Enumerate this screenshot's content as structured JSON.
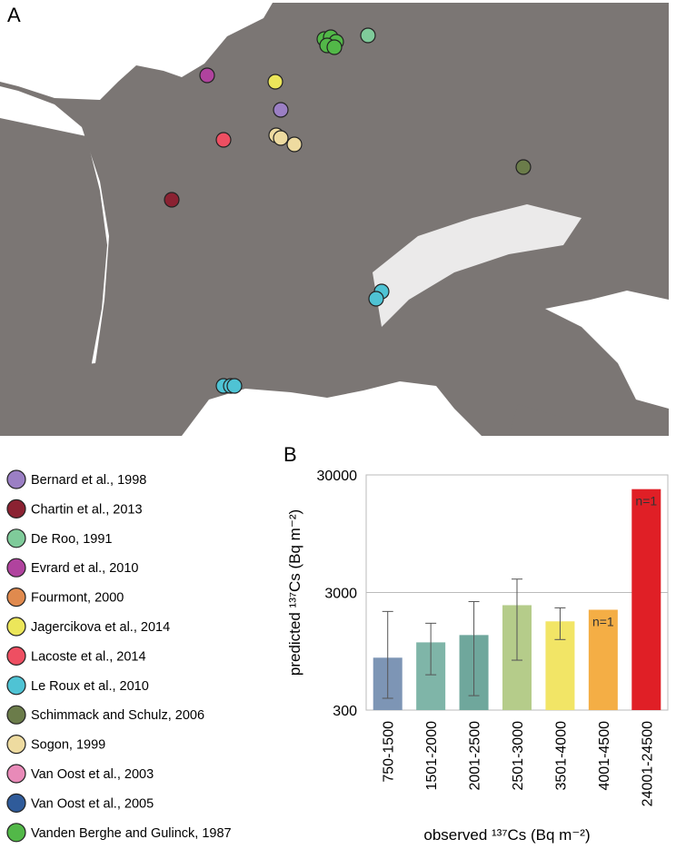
{
  "panel_a_label": "A",
  "panel_b_label": "B",
  "legend": [
    {
      "name": "Bernard et al., 1998",
      "color": "#9b7fc4"
    },
    {
      "name": "Chartin et al., 2013",
      "color": "#8b2232"
    },
    {
      "name": "De Roo, 1991",
      "color": "#7fcb9a"
    },
    {
      "name": "Evrard et al., 2010",
      "color": "#b0439e"
    },
    {
      "name": "Fourmont, 2000",
      "color": "#e08a4e"
    },
    {
      "name": "Jagercikova et al., 2014",
      "color": "#ece65a"
    },
    {
      "name": "Lacoste et al., 2014",
      "color": "#ee4f62"
    },
    {
      "name": "Le Roux et al., 2010",
      "color": "#4fc3d4"
    },
    {
      "name": "Schimmack and Schulz, 2006",
      "color": "#6b7c4a"
    },
    {
      "name": "Sogon, 1999",
      "color": "#eedba0"
    },
    {
      "name": "Van Oost et al., 2003",
      "color": "#e88ab8"
    },
    {
      "name": "Van Oost et al., 2005",
      "color": "#2f5b9a"
    },
    {
      "name": "Vanden Berghe and Gulinck, 1987",
      "color": "#52b848"
    }
  ],
  "chart_data": {
    "type": "bar",
    "y_label": "predicted ¹³⁷Cs (Bq m⁻²)",
    "x_label": "observed  ¹³⁷Cs (Bq m⁻²)",
    "categories": [
      "750-1500",
      "1501-2000",
      "2001-2500",
      "2501-3000",
      "3501-4000",
      "4001-4500",
      "24001-24500"
    ],
    "values": [
      837,
      1130,
      1304,
      2340,
      1705,
      2140,
      22700
    ],
    "error_low": [
      378,
      599,
      398,
      797,
      1194,
      null,
      null
    ],
    "error_high": [
      2070,
      1643,
      2510,
      3900,
      2220,
      null,
      null
    ],
    "colors": [
      "#7d95b5",
      "#7fb5a8",
      "#6fa79c",
      "#b5cc8a",
      "#f2e566",
      "#f4ae45",
      "#e01f26"
    ],
    "annotations": [
      null,
      null,
      null,
      null,
      null,
      "n=1",
      "n=1"
    ],
    "log_scale": true,
    "ylim": [
      300,
      30000
    ],
    "yticks": [
      300,
      3000,
      30000
    ],
    "grid": true
  }
}
